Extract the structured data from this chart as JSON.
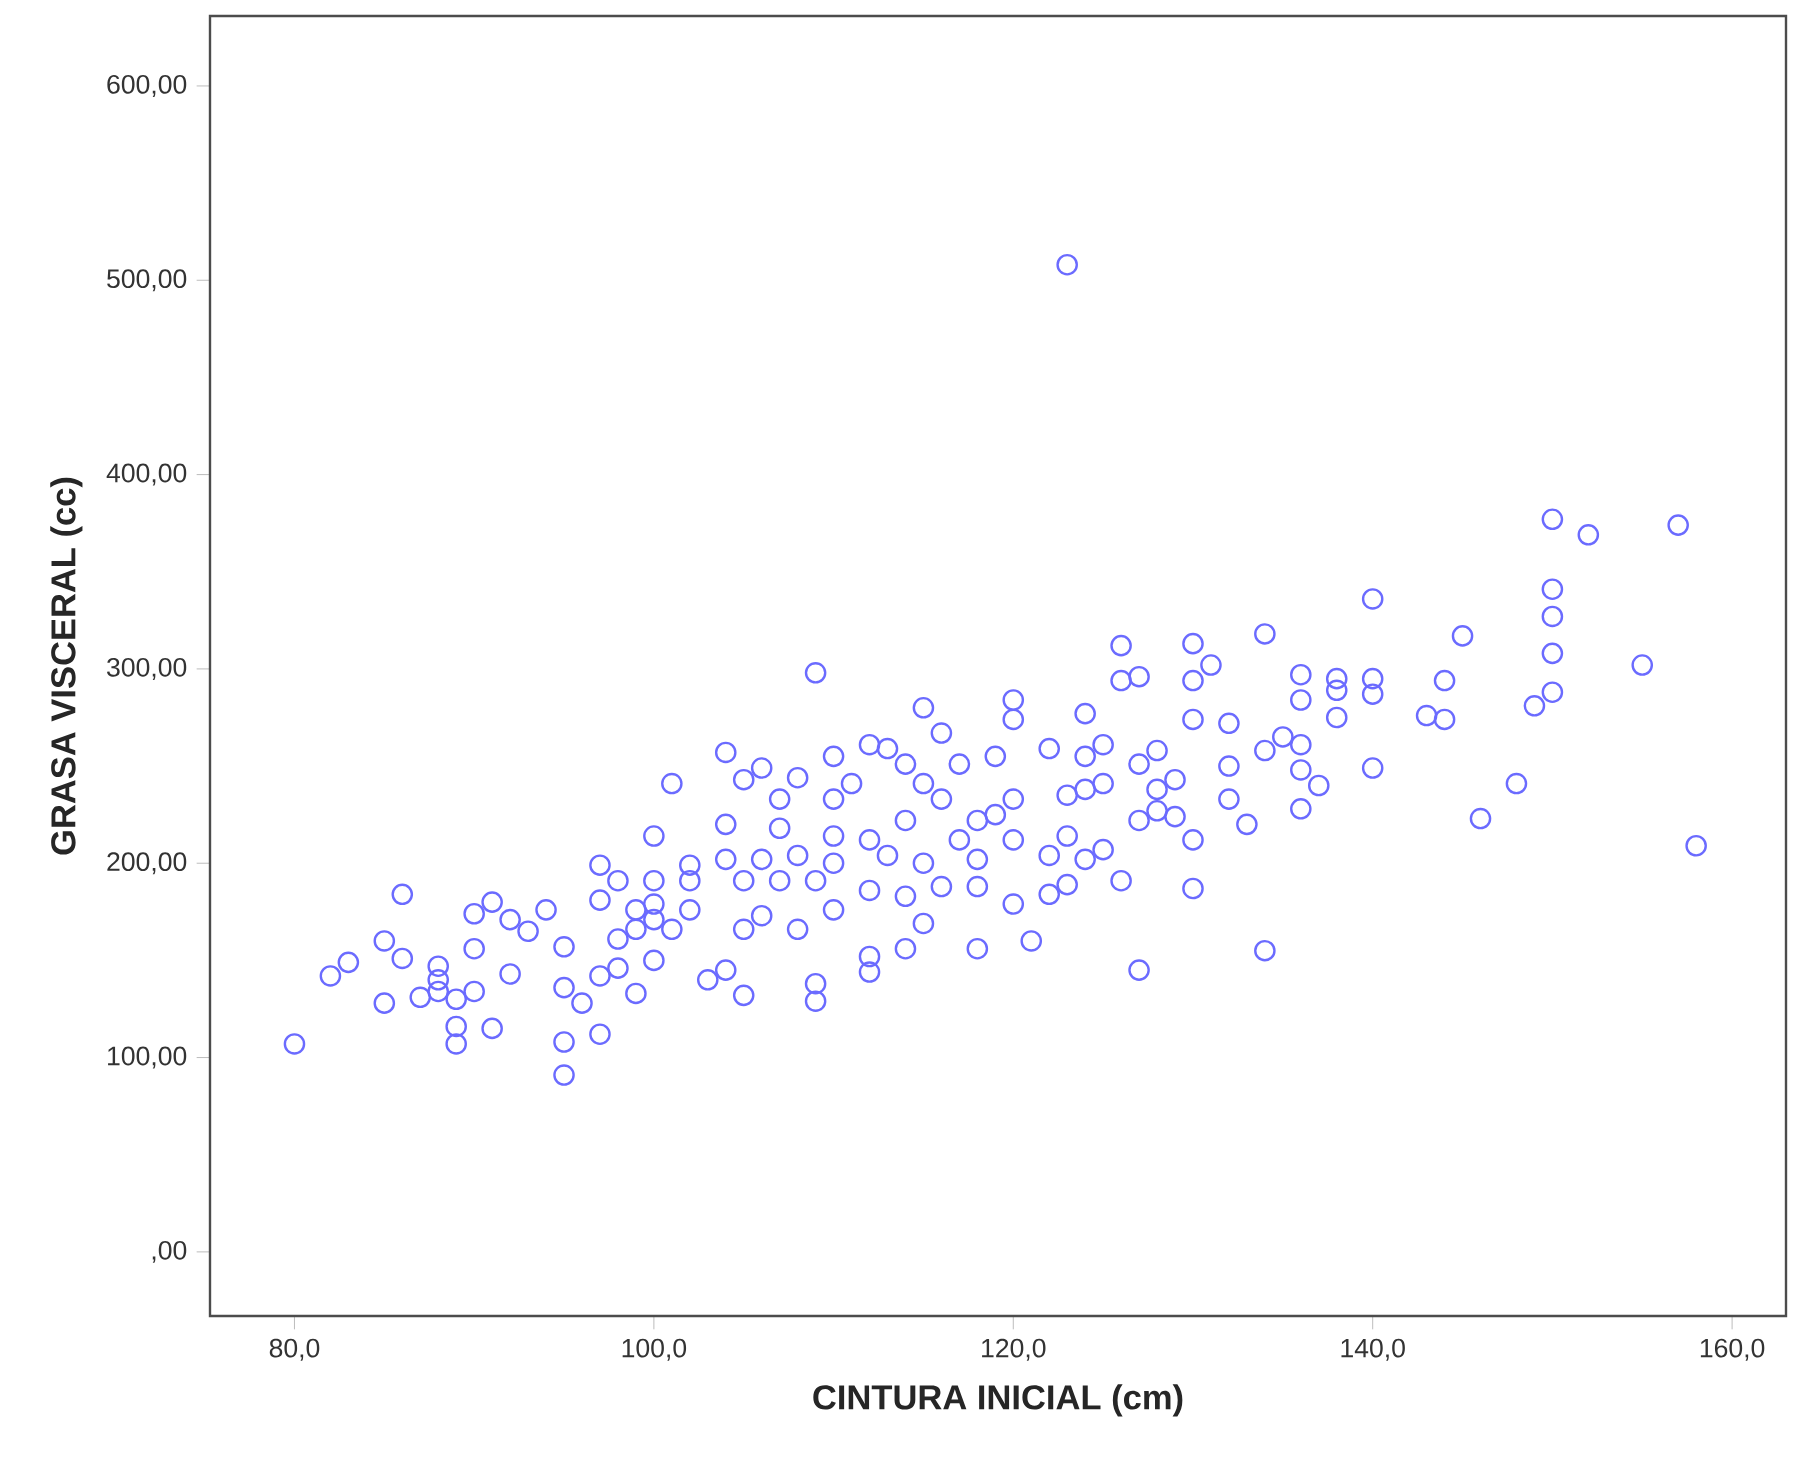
{
  "chart_data": {
    "type": "scatter",
    "xlabel": "CINTURA INICIAL (cm)",
    "ylabel": "GRASA VISCERAL (cc)",
    "color": "#6b6bff",
    "marker": "circle",
    "xlim": [
      75.3,
      163
    ],
    "ylim": [
      -33,
      636
    ],
    "xticks": [
      {
        "value": 80,
        "label": "80,0"
      },
      {
        "value": 100,
        "label": "100,0"
      },
      {
        "value": 120,
        "label": "120,0"
      },
      {
        "value": 140,
        "label": "140,0"
      },
      {
        "value": 160,
        "label": "160,0"
      }
    ],
    "yticks": [
      {
        "value": 0,
        "label": ",00"
      },
      {
        "value": 100,
        "label": "100,00"
      },
      {
        "value": 200,
        "label": "200,00"
      },
      {
        "value": 300,
        "label": "300,00"
      },
      {
        "value": 400,
        "label": "400,00"
      },
      {
        "value": 500,
        "label": "500,00"
      },
      {
        "value": 600,
        "label": "600,00"
      }
    ],
    "x": [
      80,
      82,
      83,
      85,
      85,
      86,
      86,
      87,
      88,
      88,
      88,
      89,
      89,
      89,
      90,
      90,
      90,
      91,
      91,
      92,
      92,
      93,
      94,
      95,
      95,
      95,
      95,
      96,
      97,
      97,
      97,
      97,
      98,
      98,
      98,
      99,
      99,
      99,
      100,
      100,
      100,
      100,
      100,
      101,
      101,
      102,
      102,
      102,
      103,
      104,
      104,
      104,
      104,
      105,
      105,
      105,
      105,
      106,
      106,
      106,
      107,
      107,
      107,
      108,
      108,
      108,
      109,
      109,
      109,
      109,
      110,
      110,
      110,
      110,
      110,
      111,
      112,
      112,
      112,
      112,
      112,
      113,
      113,
      114,
      114,
      114,
      114,
      115,
      115,
      115,
      115,
      116,
      116,
      116,
      117,
      117,
      118,
      118,
      118,
      118,
      119,
      119,
      120,
      120,
      120,
      120,
      120,
      121,
      122,
      122,
      122,
      123,
      123,
      123,
      123,
      124,
      124,
      124,
      124,
      125,
      125,
      125,
      126,
      126,
      126,
      127,
      127,
      127,
      127,
      128,
      128,
      128,
      129,
      129,
      130,
      130,
      130,
      130,
      130,
      131,
      132,
      132,
      132,
      133,
      134,
      134,
      134,
      135,
      136,
      136,
      136,
      136,
      136,
      137,
      138,
      138,
      138,
      140,
      140,
      140,
      140,
      143,
      144,
      144,
      145,
      146,
      148,
      149,
      150,
      150,
      150,
      150,
      150,
      152,
      155,
      157,
      158
    ],
    "values": [
      107,
      142,
      149,
      128,
      160,
      184,
      151,
      131,
      140,
      147,
      134,
      107,
      116,
      130,
      156,
      174,
      134,
      180,
      115,
      171,
      143,
      165,
      176,
      157,
      108,
      91,
      136,
      128,
      142,
      199,
      112,
      181,
      191,
      161,
      146,
      133,
      176,
      166,
      214,
      191,
      171,
      150,
      179,
      241,
      166,
      191,
      176,
      199,
      140,
      257,
      220,
      202,
      145,
      243,
      191,
      132,
      166,
      249,
      202,
      173,
      233,
      191,
      218,
      244,
      166,
      204,
      298,
      129,
      138,
      191,
      233,
      214,
      176,
      255,
      200,
      241,
      261,
      212,
      186,
      144,
      152,
      259,
      204,
      251,
      222,
      183,
      156,
      280,
      241,
      200,
      169,
      267,
      233,
      188,
      251,
      212,
      156,
      222,
      202,
      188,
      255,
      225,
      284,
      274,
      233,
      212,
      179,
      160,
      259,
      204,
      184,
      508,
      214,
      235,
      189,
      277,
      255,
      202,
      238,
      261,
      241,
      207,
      312,
      294,
      191,
      145,
      296,
      251,
      222,
      258,
      238,
      227,
      243,
      224,
      313,
      294,
      274,
      187,
      212,
      302,
      272,
      250,
      233,
      220,
      318,
      258,
      155,
      265,
      297,
      284,
      261,
      248,
      228,
      240,
      295,
      289,
      275,
      336,
      295,
      287,
      249,
      276,
      294,
      274,
      317,
      223,
      241,
      281,
      377,
      341,
      327,
      308,
      288,
      369,
      302,
      374,
      209
    ]
  }
}
